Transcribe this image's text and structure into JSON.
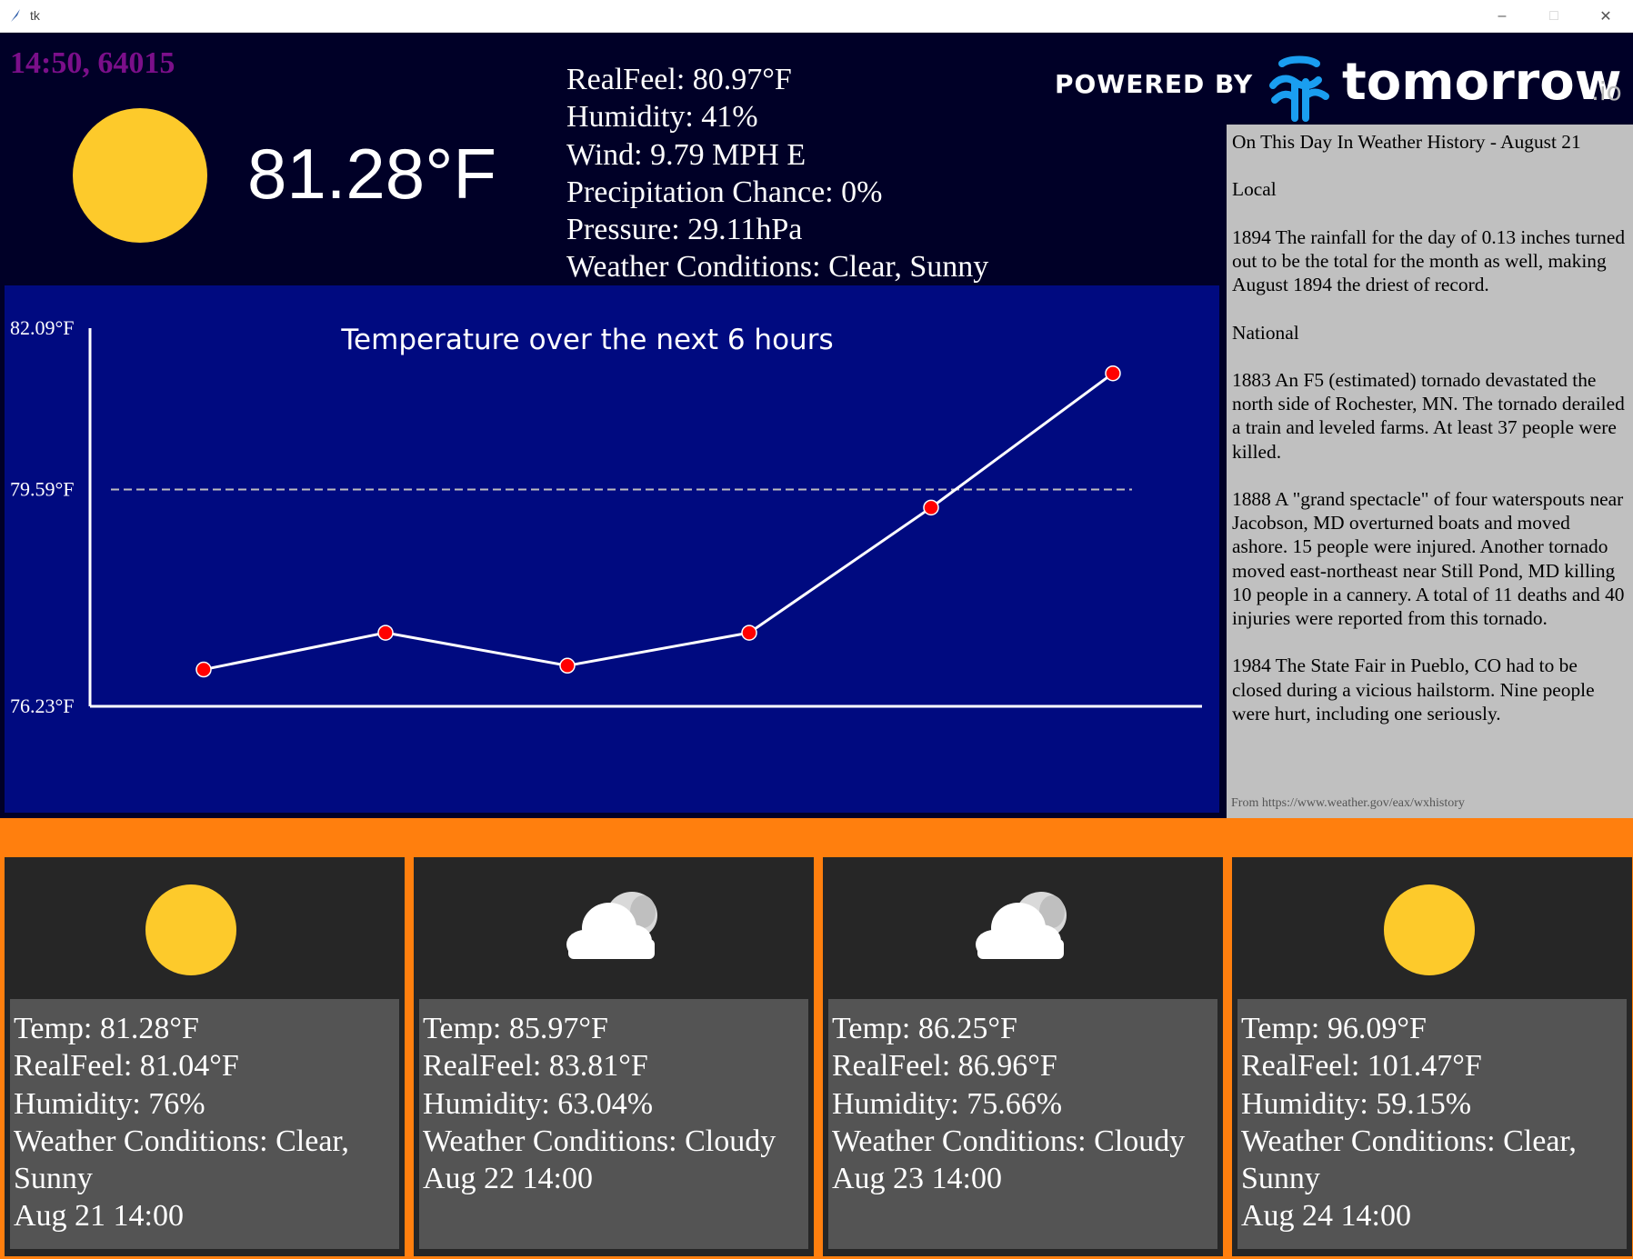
{
  "window": {
    "title": "tk",
    "minimize_icon": "minimize-icon",
    "maximize_icon": "maximize-icon",
    "close_icon": "close-icon"
  },
  "current": {
    "clock": "14:50, 64015",
    "icon": "sun-icon",
    "temperature": "81.28°F",
    "details": [
      "RealFeel: 80.97°F",
      "Humidity: 41%",
      "Wind: 9.79 MPH E",
      "Precipitation Chance: 0%",
      "Pressure: 29.11hPa",
      "Weather Conditions: Clear, Sunny"
    ]
  },
  "branding": {
    "powered_by": "POWERED BY",
    "brand_name": "tomorrow",
    "brand_suffix": ".io",
    "logo_icon": "tomorrow-io-logo-icon",
    "logo_color": "#1a9ef0"
  },
  "history": {
    "title": "On This Day In Weather History - August 21",
    "paragraphs": [
      "Local",
      "1894 The rainfall for the day of 0.13 inches turned out to be the total for the month as well, making August 1894 the driest of record.",
      "National",
      "1883 An F5 (estimated) tornado devastated the north side of Rochester, MN.  The tornado derailed a train and leveled farms.  At least 37 people were killed.",
      "1888 A \"grand spectacle\" of four waterspouts near Jacobson, MD overturned boats and moved ashore.  15 people were injured. Another tornado moved east-northeast near Still Pond, MD killing 10 people in a cannery.  A total of 11 deaths and 40 injuries were reported from this tornado.",
      "1984 The State Fair in Pueblo, CO had to be closed during a vicious hailstorm. Nine people were hurt, including one seriously."
    ],
    "source": "From https://www.weather.gov/eax/wxhistory"
  },
  "chart_data": {
    "type": "line",
    "title": "Temperature over the next 6 hours",
    "x": [
      1,
      2,
      3,
      4,
      5,
      6
    ],
    "values": [
      76.8,
      77.37,
      76.86,
      77.37,
      79.31,
      81.39
    ],
    "ylim": [
      76.23,
      82.09
    ],
    "y_tick_labels": [
      "82.09°F",
      "79.59°F",
      "76.23°F"
    ],
    "y_tick_values": [
      82.09,
      79.59,
      76.23
    ],
    "reference_line": 79.59,
    "line_color": "#ffffff",
    "marker_color": "#ff0000",
    "background": "#000a80"
  },
  "forecast": [
    {
      "icon": "sun-icon",
      "lines": [
        "Temp: 81.28°F",
        "RealFeel: 81.04°F",
        "Humidity: 76%",
        "Weather Conditions: Clear,",
        "Sunny",
        "Aug 21 14:00"
      ]
    },
    {
      "icon": "cloud-icon",
      "lines": [
        "Temp: 85.97°F",
        "RealFeel: 83.81°F",
        "Humidity: 63.04%",
        "Weather Conditions: Cloudy",
        "Aug 22 14:00"
      ]
    },
    {
      "icon": "cloud-icon",
      "lines": [
        "Temp: 86.25°F",
        "RealFeel: 86.96°F",
        "Humidity: 75.66%",
        "Weather Conditions: Cloudy",
        "Aug 23 14:00"
      ]
    },
    {
      "icon": "sun-icon",
      "lines": [
        "Temp: 96.09°F",
        "RealFeel: 101.47°F",
        "Humidity: 59.15%",
        "Weather Conditions: Clear,",
        "Sunny",
        "Aug 24 14:00"
      ]
    }
  ],
  "colors": {
    "app_background": "#000027",
    "clock": "#7b0f8a",
    "sun": "#fdca2b",
    "forecast_border": "#ff7f0e",
    "history_background": "#c0c0c0"
  }
}
